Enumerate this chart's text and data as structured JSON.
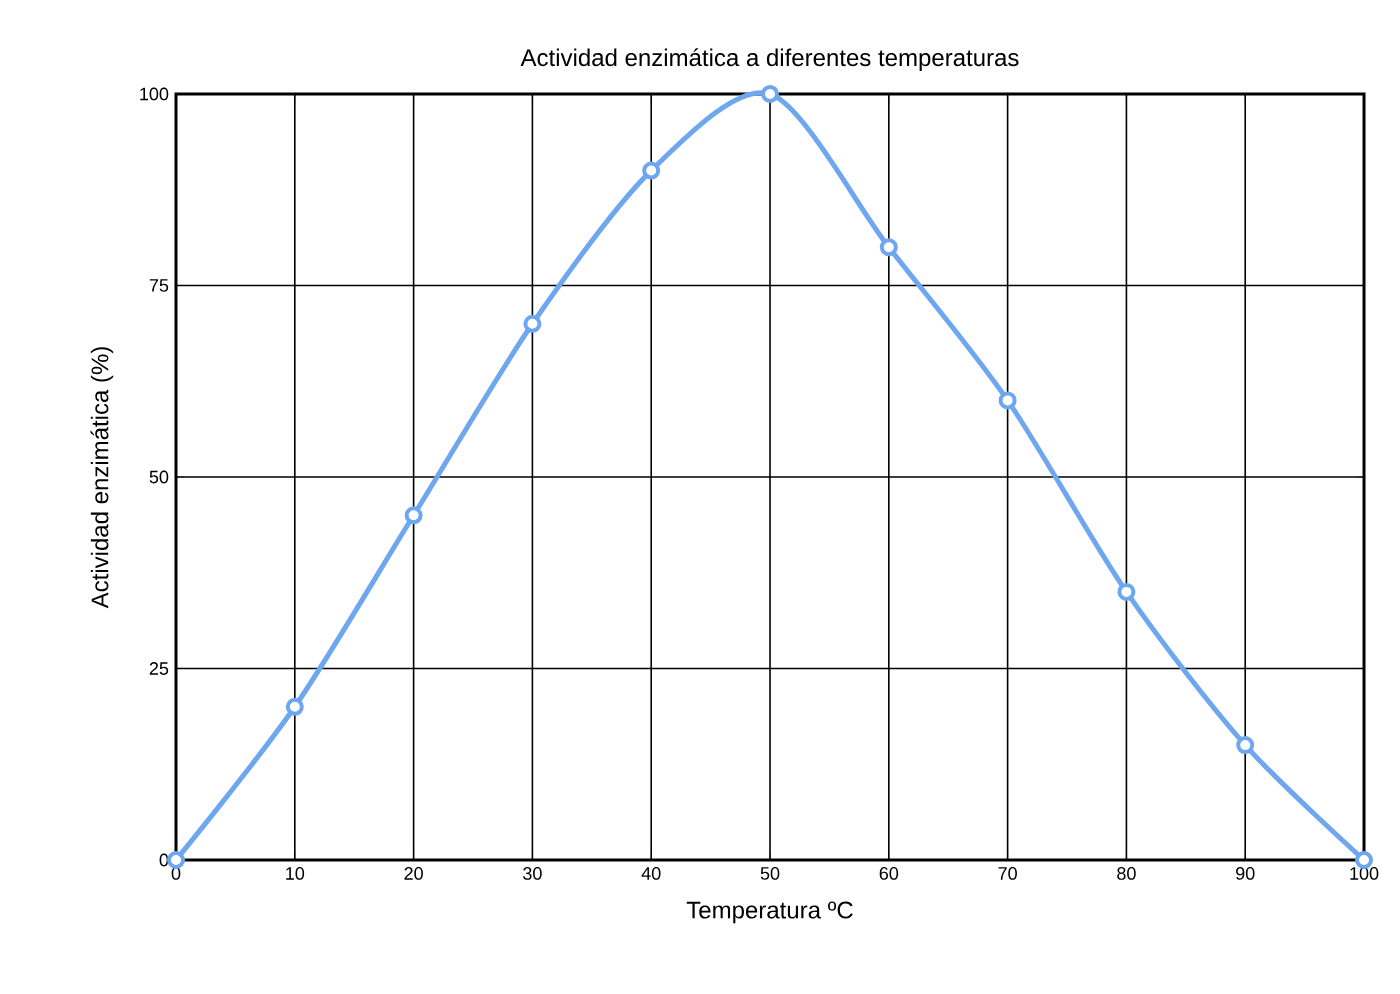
{
  "chart_data": {
    "type": "line",
    "title": "Actividad enzimática a diferentes temperaturas",
    "xlabel": "Temperatura ºC",
    "ylabel": "Actividad enzimática (%)",
    "x": [
      0,
      10,
      20,
      30,
      40,
      50,
      60,
      70,
      80,
      90,
      100
    ],
    "series": [
      {
        "color": "#6ea6ef",
        "values": [
          0,
          20,
          45,
          70,
          90,
          100,
          80,
          60,
          35,
          15,
          0
        ]
      }
    ],
    "xlim": [
      0,
      100
    ],
    "xticks": [
      0,
      10,
      20,
      30,
      40,
      50,
      60,
      70,
      80,
      90,
      100
    ],
    "ylim": [
      0,
      100
    ],
    "yticks": [
      0,
      25,
      50,
      75,
      100
    ],
    "grid": true,
    "marker": "circle",
    "line_style": "solid"
  }
}
